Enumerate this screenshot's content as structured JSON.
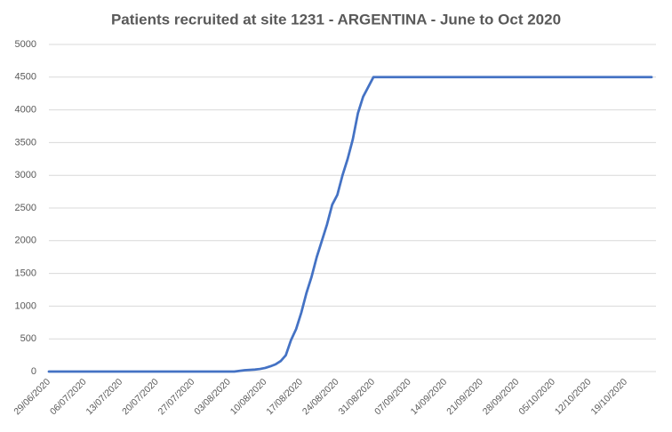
{
  "chart_data": {
    "type": "line",
    "title": "Patients recruited at site 1231 - ARGENTINA - June to Oct 2020",
    "categories": [
      "29/06/2020",
      null,
      null,
      null,
      null,
      null,
      null,
      "06/07/2020",
      null,
      null,
      null,
      null,
      null,
      null,
      "13/07/2020",
      null,
      null,
      null,
      null,
      null,
      null,
      "20/07/2020",
      null,
      null,
      null,
      null,
      null,
      null,
      "27/07/2020",
      null,
      null,
      null,
      null,
      null,
      null,
      "03/08/2020",
      null,
      null,
      null,
      null,
      null,
      null,
      "10/08/2020",
      null,
      null,
      null,
      null,
      null,
      null,
      "17/08/2020",
      null,
      null,
      null,
      null,
      null,
      null,
      "24/08/2020",
      null,
      null,
      null,
      null,
      null,
      null,
      "31/08/2020",
      null,
      null,
      null,
      null,
      null,
      null,
      "07/09/2020",
      null,
      null,
      null,
      null,
      null,
      null,
      "14/09/2020",
      null,
      null,
      null,
      null,
      null,
      null,
      "21/09/2020",
      null,
      null,
      null,
      null,
      null,
      null,
      "28/09/2020",
      null,
      null,
      null,
      null,
      null,
      null,
      "05/10/2020",
      null,
      null,
      null,
      null,
      null,
      null,
      "12/10/2020",
      null,
      null,
      null,
      null,
      null,
      null,
      "19/10/2020",
      null,
      null,
      null,
      null,
      null
    ],
    "values": [
      0,
      0,
      0,
      0,
      0,
      0,
      0,
      0,
      0,
      0,
      0,
      0,
      0,
      0,
      0,
      0,
      0,
      0,
      0,
      0,
      0,
      0,
      0,
      0,
      0,
      0,
      0,
      0,
      0,
      0,
      0,
      0,
      0,
      0,
      0,
      0,
      0,
      10,
      20,
      25,
      30,
      40,
      55,
      80,
      110,
      160,
      250,
      480,
      650,
      900,
      1200,
      1450,
      1750,
      2000,
      2250,
      2550,
      2700,
      3000,
      3250,
      3550,
      3950,
      4200,
      4350,
      4500,
      4500,
      4500,
      4500,
      4500,
      4500,
      4500,
      4500,
      4500,
      4500,
      4500,
      4500,
      4500,
      4500,
      4500,
      4500,
      4500,
      4500,
      4500,
      4500,
      4500,
      4500,
      4500,
      4500,
      4500,
      4500,
      4500,
      4500,
      4500,
      4500,
      4500,
      4500,
      4500,
      4500,
      4500,
      4500,
      4500,
      4500,
      4500,
      4500,
      4500,
      4500,
      4500,
      4500,
      4500,
      4500,
      4500,
      4500,
      4500,
      4500,
      4500,
      4500,
      4500,
      4500,
      4500
    ],
    "color": "#4472c4",
    "ylim": [
      0,
      5000
    ],
    "yticks": [
      0,
      500,
      1000,
      1500,
      2000,
      2500,
      3000,
      3500,
      4000,
      4500,
      5000
    ],
    "grid": true
  }
}
